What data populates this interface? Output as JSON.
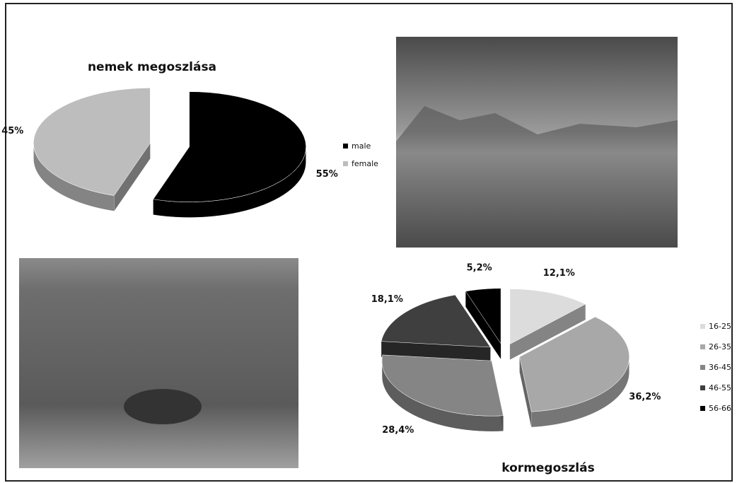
{
  "chart_data": [
    {
      "type": "pie",
      "title": "nemek megoszlása",
      "categories": [
        "male",
        "female"
      ],
      "values": [
        55,
        45
      ],
      "value_labels": [
        "55%",
        "45%"
      ],
      "colors": [
        "#000000",
        "#bdbdbd"
      ]
    },
    {
      "type": "pie",
      "title": "kormegoszlás",
      "categories": [
        "16-25",
        "26-35",
        "36-45",
        "46-55",
        "56-66"
      ],
      "values": [
        12.1,
        36.2,
        28.4,
        18.1,
        5.2
      ],
      "value_labels": [
        "12,1%",
        "36,2%",
        "28,4%",
        "18,1%",
        "5,2%"
      ],
      "colors": [
        "#dcdcdc",
        "#a8a8a8",
        "#858585",
        "#3f3f3f",
        "#000000"
      ]
    }
  ]
}
